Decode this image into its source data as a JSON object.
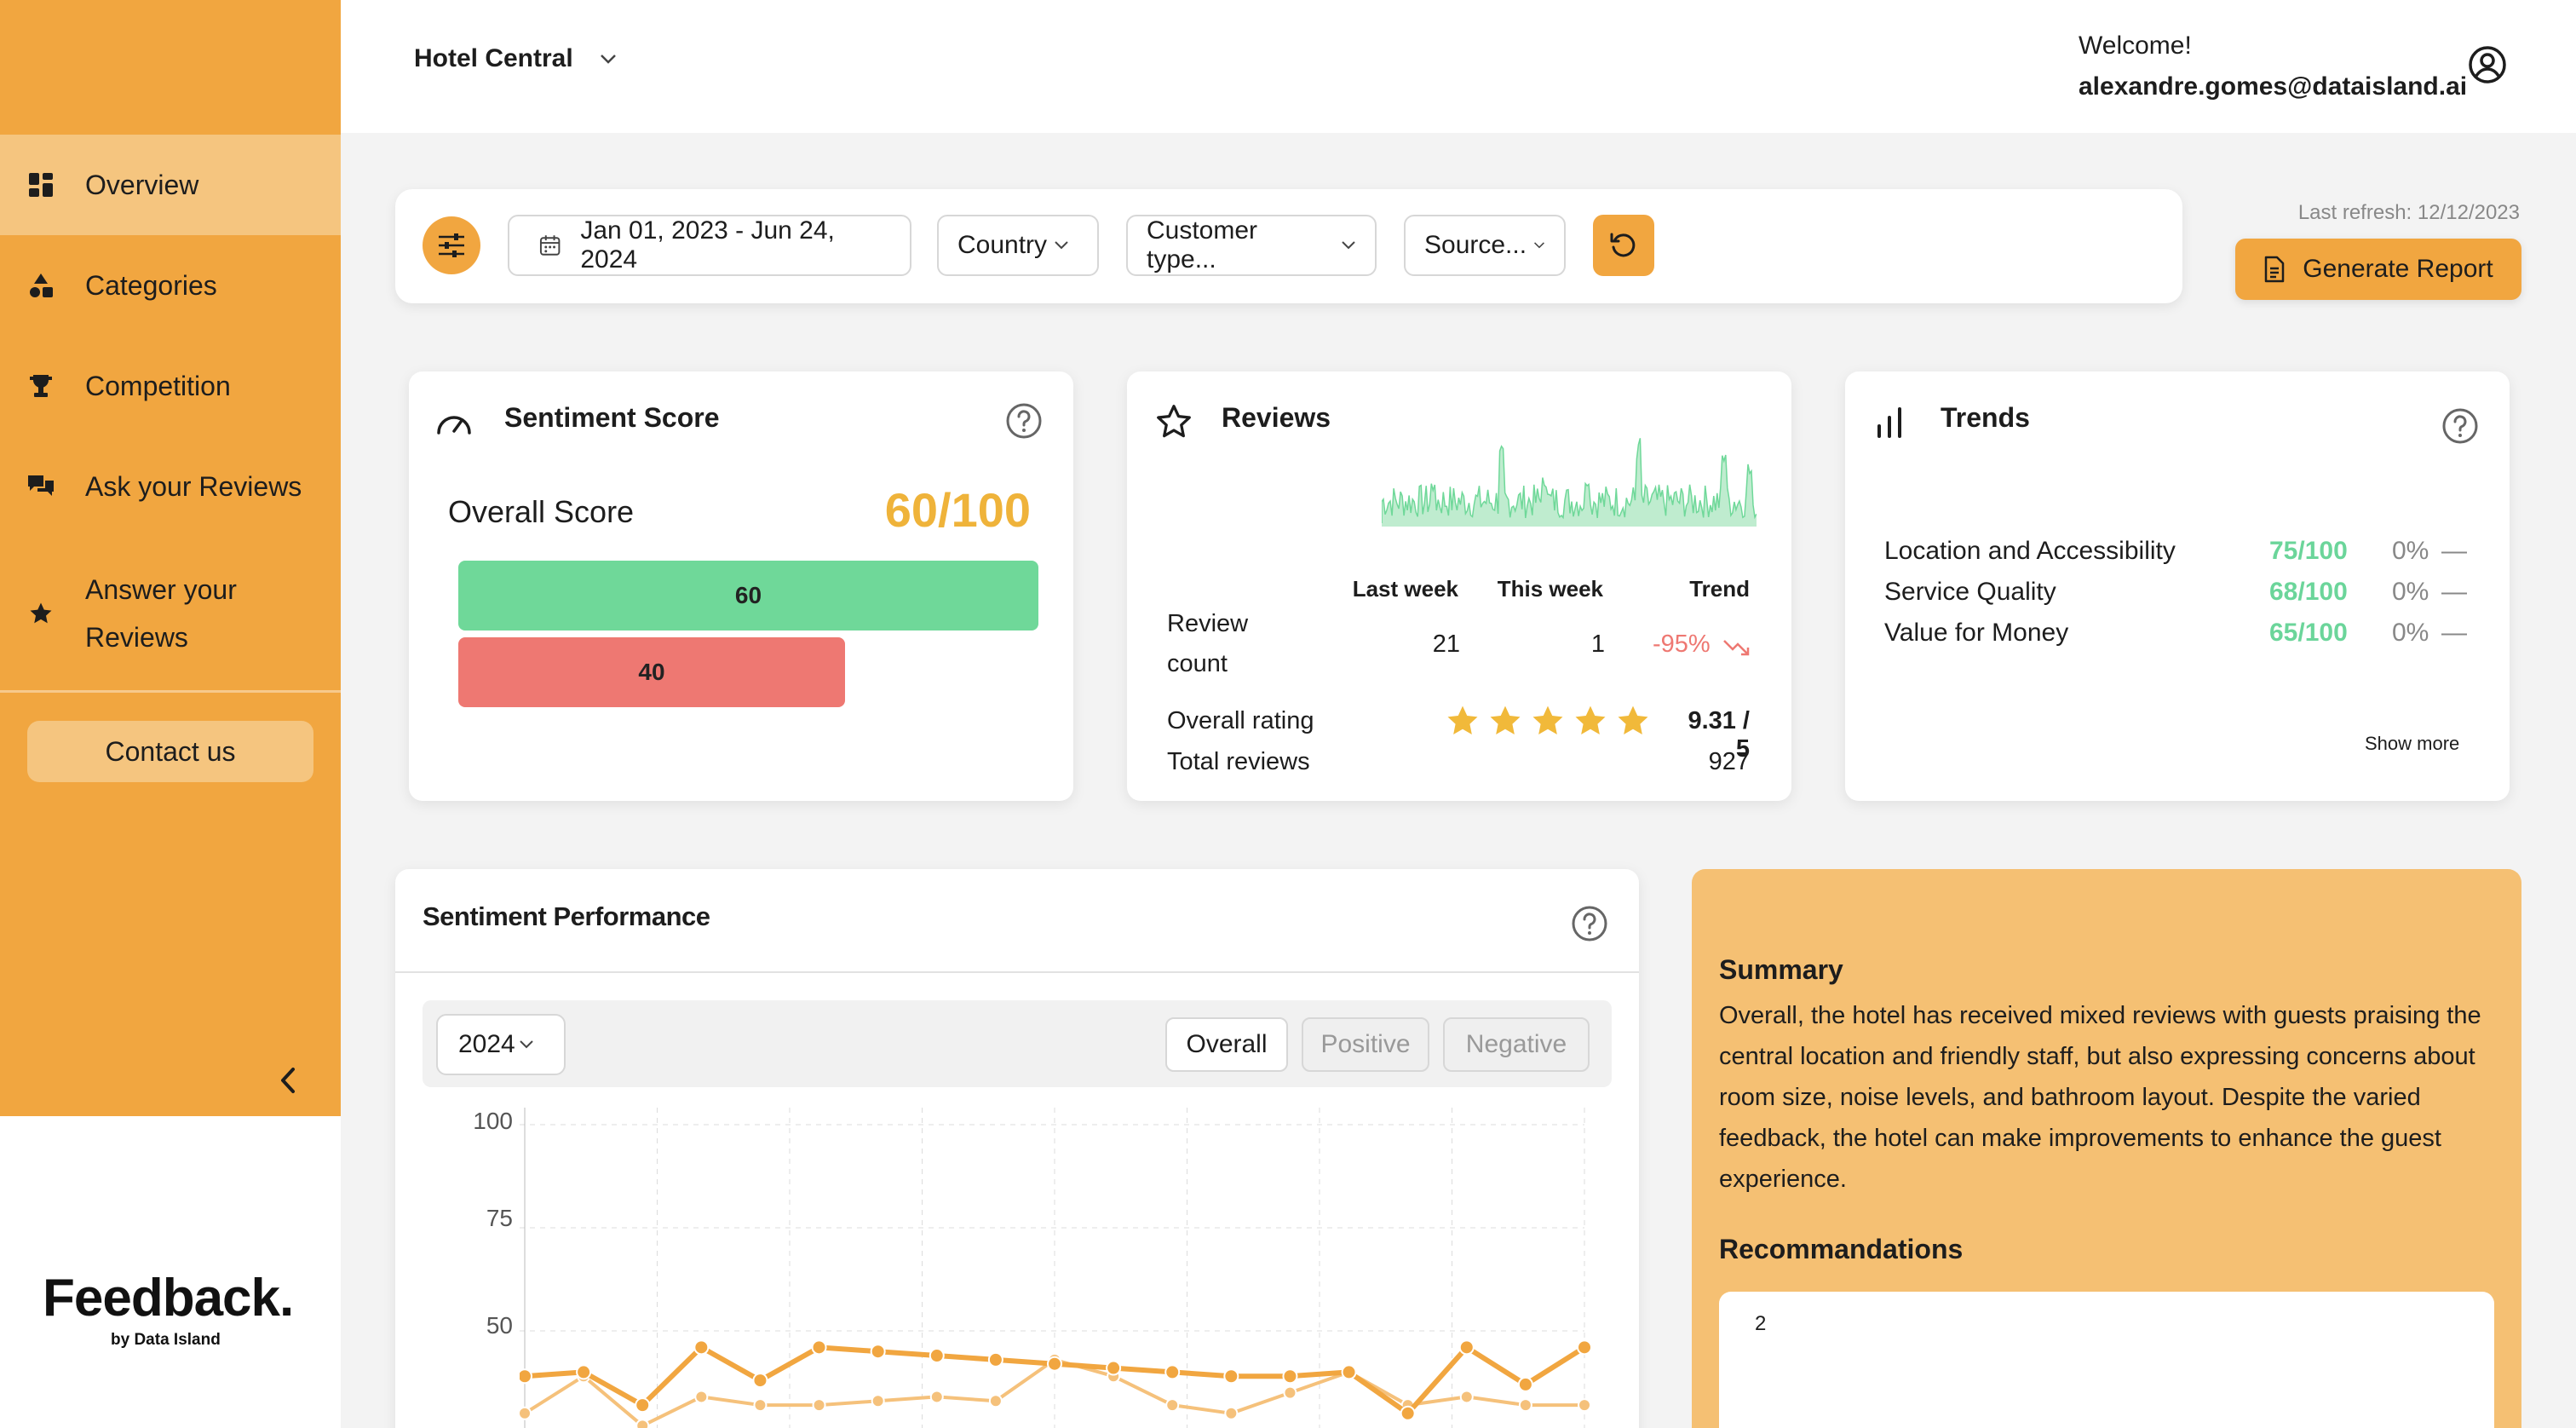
{
  "sidebar": {
    "items": [
      {
        "label": "Overview",
        "icon": "grid-icon",
        "active": true
      },
      {
        "label": "Categories",
        "icon": "shapes-icon"
      },
      {
        "label": "Competition",
        "icon": "trophy-icon"
      },
      {
        "label": "Ask your Reviews",
        "icon": "chat-icon"
      },
      {
        "label": "Answer your Reviews",
        "icon": "star-icon"
      }
    ],
    "contact_label": "Contact us",
    "logo": "Feedback.",
    "logo_sub": "by Data Island"
  },
  "header": {
    "hotel": "Hotel Central",
    "welcome": "Welcome!",
    "email": "alexandre.gomes@dataisland.ai"
  },
  "filters": {
    "date_range": "Jan 01, 2023 - Jun 24, 2024",
    "country": "Country",
    "customer_type": "Customer type...",
    "source": "Source...",
    "last_refresh": "Last refresh: 12/12/2023",
    "generate_label": "Generate Report"
  },
  "sentiment": {
    "title": "Sentiment Score",
    "overall_label": "Overall Score",
    "overall_value": "60/100",
    "positive": "60",
    "negative": "40",
    "positive_frac": 0.6,
    "negative_frac": 0.4
  },
  "reviews": {
    "title": "Reviews",
    "col_last": "Last week",
    "col_this": "This week",
    "col_trend": "Trend",
    "count_label_1": "Review",
    "count_label_2": "count",
    "last_week": "21",
    "this_week": "1",
    "trend": "-95%",
    "rating_label": "Overall rating",
    "rating_value": "9.31 / 5",
    "stars": 5,
    "total_label": "Total reviews",
    "total_value": "927"
  },
  "trends": {
    "title": "Trends",
    "rows": [
      {
        "label": "Location and Accessibility",
        "score": "75/100",
        "pct": "0%",
        "dash": "—"
      },
      {
        "label": "Service Quality",
        "score": "68/100",
        "pct": "0%",
        "dash": "—"
      },
      {
        "label": "Value for Money",
        "score": "65/100",
        "pct": "0%",
        "dash": "—"
      }
    ],
    "show_more": "Show more"
  },
  "performance": {
    "title": "Sentiment Performance",
    "year": "2024",
    "tabs": [
      "Overall",
      "Positive",
      "Negative"
    ],
    "active_tab": "Overall"
  },
  "chart_data": {
    "type": "line",
    "ylim": [
      0,
      100
    ],
    "y_ticks": [
      "100",
      "75",
      "50"
    ],
    "series": [
      {
        "values": [
          39,
          40,
          32,
          46,
          38,
          46,
          45,
          44,
          43,
          42,
          41,
          40,
          39,
          39,
          40,
          30,
          46,
          37,
          46
        ]
      },
      {
        "values": [
          30,
          39,
          27,
          34,
          32,
          32,
          33,
          34,
          33,
          43,
          39,
          32,
          30,
          35,
          40,
          32,
          34,
          32,
          32
        ]
      }
    ],
    "colors": [
      "#f1a640",
      "#f5c17b"
    ]
  },
  "summary": {
    "title": "Summary",
    "text": "Overall, the hotel has received mixed reviews with guests praising the central location and friendly staff, but also expressing concerns about room size, noise levels, and bathroom layout. Despite the varied feedback, the hotel can make improvements to enhance the guest experience.",
    "rec_title": "Recommandations",
    "rec_text": "2"
  },
  "colors": {
    "accent": "#f1a640",
    "accent_light": "#f5c57f",
    "positive": "#6fd899",
    "negative": "#ee7872",
    "score": "#efb33a"
  }
}
